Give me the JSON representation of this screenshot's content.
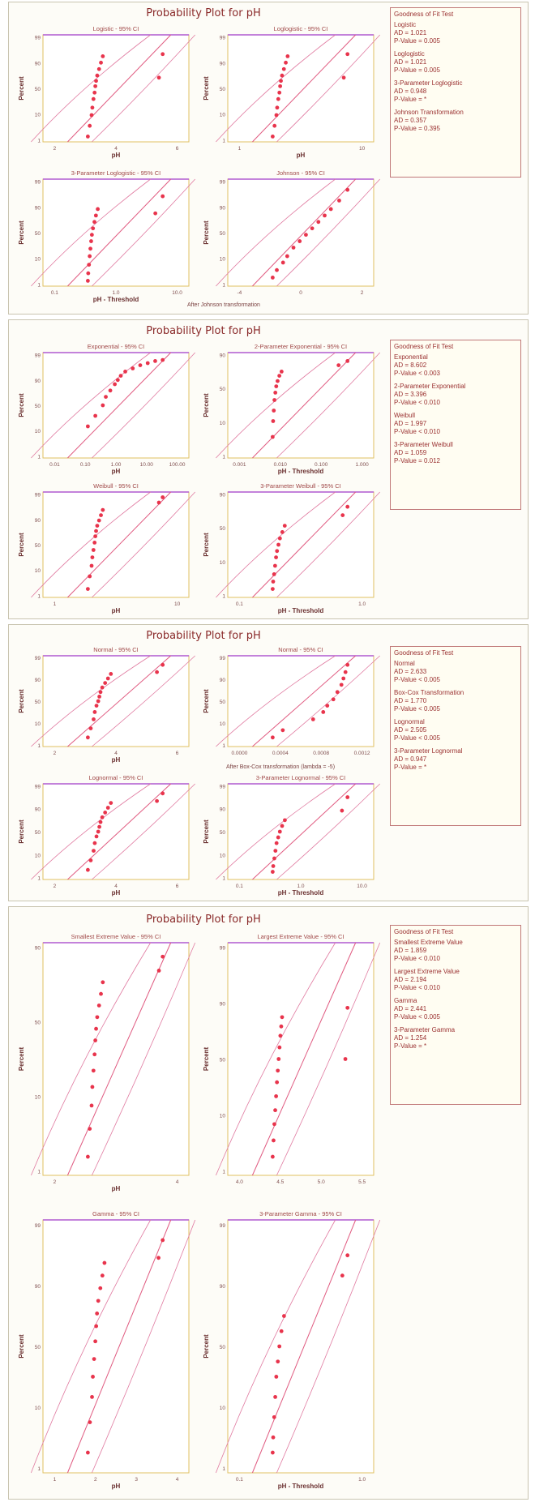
{
  "panels": [
    {
      "title": "Probability Plot for pH",
      "note": "After Johnson transformation",
      "gof_header": "Goodness of Fit Test",
      "gof": [
        {
          "name": "Logistic",
          "ad": "AD = 1.021",
          "p": "P-Value = 0.005"
        },
        {
          "name": "Loglogistic",
          "ad": "AD = 1.021",
          "p": "P-Value = 0.005"
        },
        {
          "name": "3-Parameter Loglogistic",
          "ad": "AD = 0.948",
          "p": "P-Value = *"
        },
        {
          "name": "Johnson Transformation",
          "ad": "AD = 0.357",
          "p": "P-Value = 0.395"
        }
      ]
    },
    {
      "title": "Probability Plot for pH",
      "note": "",
      "gof_header": "Goodness of Fit Test",
      "gof": [
        {
          "name": "Exponential",
          "ad": "AD = 8.602",
          "p": "P-Value < 0.003"
        },
        {
          "name": "2-Parameter Exponential",
          "ad": "AD = 3.396",
          "p": "P-Value < 0.010"
        },
        {
          "name": "Weibull",
          "ad": "AD = 1.997",
          "p": "P-Value < 0.010"
        },
        {
          "name": "3-Parameter Weibull",
          "ad": "AD = 1.059",
          "p": "P-Value = 0.012"
        }
      ]
    },
    {
      "title": "Probability Plot for pH",
      "note": "After Box-Cox transformation (lambda = -5)",
      "gof_header": "Goodness of Fit Test",
      "gof": [
        {
          "name": "Normal",
          "ad": "AD = 2.633",
          "p": "P-Value < 0.005"
        },
        {
          "name": "Box-Cox Transformation",
          "ad": "AD = 1.770",
          "p": "P-Value < 0.005"
        },
        {
          "name": "Lognormal",
          "ad": "AD = 2.505",
          "p": "P-Value < 0.005"
        },
        {
          "name": "3-Parameter Lognormal",
          "ad": "AD = 0.947",
          "p": "P-Value = *"
        }
      ]
    },
    {
      "title": "Probability Plot for pH",
      "note": "",
      "gof_header": "Goodness of Fit Test",
      "gof": [
        {
          "name": "Smallest Extreme Value",
          "ad": "AD = 1.859",
          "p": "P-Value < 0.010"
        },
        {
          "name": "Largest Extreme Value",
          "ad": "AD = 2.194",
          "p": "P-Value < 0.010"
        },
        {
          "name": "Gamma",
          "ad": "AD = 2.441",
          "p": "P-Value < 0.005"
        },
        {
          "name": "3-Parameter Gamma",
          "ad": "AD = 1.254",
          "p": "P-Value = *"
        }
      ]
    }
  ],
  "chart_data": [
    {
      "type": "scatter",
      "title": "Logistic - 95% CI",
      "xlabel": "pH",
      "ylabel": "Percent",
      "xticks": [
        "2",
        "4",
        "6"
      ],
      "yticks": [
        "1",
        "10",
        "50",
        "90",
        "99"
      ],
      "series": [
        {
          "name": "",
          "x": [
            4.1,
            4.15,
            4.2,
            4.22,
            4.25,
            4.28,
            4.3,
            4.32,
            4.35,
            4.4,
            4.45,
            4.5,
            6.0,
            6.1
          ],
          "y": [
            5,
            15,
            25,
            32,
            40,
            46,
            52,
            57,
            62,
            68,
            74,
            80,
            60,
            82
          ]
        }
      ]
    },
    {
      "type": "scatter",
      "title": "Loglogistic - 95% CI",
      "xlabel": "pH",
      "ylabel": "Percent",
      "xticks": [
        "1",
        "10"
      ],
      "yticks": [
        "1",
        "10",
        "50",
        "90",
        "99"
      ],
      "series": [
        {
          "name": "",
          "x": [
            4.1,
            4.15,
            4.2,
            4.22,
            4.25,
            4.28,
            4.3,
            4.32,
            4.35,
            4.4,
            4.45,
            4.5,
            6.0,
            6.1
          ],
          "y": [
            5,
            15,
            25,
            32,
            40,
            46,
            52,
            57,
            62,
            68,
            74,
            80,
            60,
            82
          ]
        }
      ]
    },
    {
      "type": "scatter",
      "title": "3-Parameter Loglogistic - 95% CI",
      "xlabel": "pH - Threshold",
      "ylabel": "Percent",
      "xticks": [
        "0.1",
        "1.0",
        "10.0"
      ],
      "yticks": [
        "1",
        "10",
        "50",
        "90",
        "99"
      ],
      "series": [
        {
          "name": "",
          "x": [
            0.06,
            0.07,
            0.09,
            0.11,
            0.13,
            0.15,
            0.17,
            0.2,
            0.24,
            0.28,
            0.33,
            1.9,
            2.1
          ],
          "y": [
            5,
            12,
            20,
            28,
            35,
            42,
            48,
            54,
            60,
            66,
            72,
            68,
            84
          ]
        }
      ]
    },
    {
      "type": "scatter",
      "title": "Johnson - 95% CI",
      "xlabel": "",
      "ylabel": "Percent",
      "xticks": [
        "-4",
        "0",
        "2"
      ],
      "yticks": [
        "1",
        "10",
        "50",
        "90",
        "99"
      ],
      "series": [
        {
          "name": "",
          "x": [
            -1.9,
            -1.7,
            -1.4,
            -1.2,
            -0.9,
            -0.6,
            -0.3,
            0,
            0.3,
            0.6,
            0.9,
            1.3,
            1.7
          ],
          "y": [
            8,
            15,
            22,
            28,
            36,
            42,
            48,
            54,
            60,
            66,
            72,
            80,
            90
          ]
        }
      ]
    },
    {
      "type": "scatter",
      "title": "Exponential - 95% CI",
      "xlabel": "pH",
      "ylabel": "Percent",
      "xticks": [
        "0.01",
        "0.10",
        "1.00",
        "10.00",
        "100.00"
      ],
      "yticks": [
        "1",
        "10",
        "50",
        "90",
        "99"
      ],
      "series": [
        {
          "name": "",
          "x": [
            4.1,
            4.15,
            4.2,
            4.22,
            4.25,
            4.28,
            4.3,
            4.32,
            4.35,
            4.4,
            4.45,
            4.5,
            4.55,
            4.6
          ],
          "y": [
            30,
            40,
            50,
            58,
            64,
            70,
            74,
            78,
            82,
            85,
            88,
            90,
            92,
            93
          ]
        }
      ]
    },
    {
      "type": "scatter",
      "title": "2-Parameter Exponential - 95% CI",
      "xlabel": "pH - Threshold",
      "ylabel": "Percent",
      "xticks": [
        "0.001",
        "0.010",
        "0.100",
        "1.000"
      ],
      "yticks": [
        "1",
        "10",
        "50",
        "90"
      ],
      "series": [
        {
          "name": "",
          "x": [
            0.02,
            0.03,
            0.045,
            0.06,
            0.08,
            0.1,
            0.13,
            0.17,
            0.22,
            1.5,
            1.7
          ],
          "y": [
            20,
            35,
            45,
            55,
            62,
            68,
            73,
            78,
            82,
            88,
            92
          ]
        }
      ]
    },
    {
      "type": "scatter",
      "title": "Weibull - 95% CI",
      "xlabel": "pH",
      "ylabel": "Percent",
      "xticks": [
        "1",
        "10"
      ],
      "yticks": [
        "1",
        "10",
        "50",
        "90",
        "99"
      ],
      "series": [
        {
          "name": "",
          "x": [
            4.1,
            4.15,
            4.2,
            4.22,
            4.25,
            4.28,
            4.3,
            4.32,
            4.35,
            4.4,
            4.45,
            4.5,
            6.0,
            6.1
          ],
          "y": [
            8,
            20,
            30,
            38,
            45,
            52,
            58,
            63,
            68,
            73,
            78,
            83,
            90,
            95
          ]
        }
      ]
    },
    {
      "type": "scatter",
      "title": "3-Parameter Weibull - 95% CI",
      "xlabel": "pH - Threshold",
      "ylabel": "Percent",
      "xticks": [
        "0.1",
        "1.0"
      ],
      "yticks": [
        "1",
        "10",
        "50",
        "90"
      ],
      "series": [
        {
          "name": "",
          "x": [
            0.05,
            0.06,
            0.08,
            0.1,
            0.12,
            0.14,
            0.17,
            0.2,
            0.25,
            0.3,
            1.5,
            1.6
          ],
          "y": [
            8,
            15,
            22,
            30,
            38,
            44,
            50,
            56,
            62,
            68,
            78,
            86
          ]
        }
      ]
    },
    {
      "type": "scatter",
      "title": "Normal - 95% CI",
      "xlabel": "pH",
      "ylabel": "Percent",
      "xticks": [
        "2",
        "4",
        "6"
      ],
      "yticks": [
        "1",
        "10",
        "50",
        "90",
        "99"
      ],
      "series": [
        {
          "name": "",
          "x": [
            4.1,
            4.15,
            4.2,
            4.22,
            4.25,
            4.28,
            4.3,
            4.32,
            4.35,
            4.4,
            4.45,
            4.5,
            5.3,
            5.4
          ],
          "y": [
            10,
            20,
            30,
            38,
            45,
            50,
            55,
            60,
            65,
            70,
            75,
            80,
            82,
            90
          ]
        }
      ]
    },
    {
      "type": "scatter",
      "title": "Normal - 95% CI",
      "xlabel": "",
      "ylabel": "Percent",
      "xticks": [
        "0.0000",
        "0.0004",
        "0.0008",
        "0.0012"
      ],
      "yticks": [
        "1",
        "10",
        "50",
        "90",
        "99"
      ],
      "series": [
        {
          "name": "",
          "x": [
            0.00045,
            0.0005,
            0.00065,
            0.0007,
            0.00072,
            0.00075,
            0.00077,
            0.00079,
            0.0008,
            0.00081,
            0.00082
          ],
          "y": [
            10,
            18,
            30,
            38,
            45,
            52,
            60,
            68,
            75,
            82,
            90
          ]
        }
      ]
    },
    {
      "type": "scatter",
      "title": "Lognormal - 95% CI",
      "xlabel": "pH",
      "ylabel": "Percent",
      "xticks": [
        "2",
        "4",
        "6"
      ],
      "yticks": [
        "1",
        "10",
        "50",
        "90",
        "99"
      ],
      "series": [
        {
          "name": "",
          "x": [
            4.1,
            4.15,
            4.2,
            4.22,
            4.25,
            4.28,
            4.3,
            4.32,
            4.35,
            4.4,
            4.45,
            4.5,
            5.3,
            5.4
          ],
          "y": [
            10,
            20,
            30,
            38,
            45,
            50,
            55,
            60,
            65,
            70,
            75,
            80,
            82,
            90
          ]
        }
      ]
    },
    {
      "type": "scatter",
      "title": "3-Parameter Lognormal - 95% CI",
      "xlabel": "pH - Threshold",
      "ylabel": "Percent",
      "xticks": [
        "0.1",
        "1.0",
        "10.0"
      ],
      "yticks": [
        "1",
        "10",
        "50",
        "90",
        "99"
      ],
      "series": [
        {
          "name": "",
          "x": [
            0.05,
            0.06,
            0.08,
            0.1,
            0.12,
            0.15,
            0.18,
            0.22,
            0.27,
            1.3,
            1.4
          ],
          "y": [
            8,
            14,
            22,
            30,
            38,
            44,
            50,
            56,
            62,
            72,
            86
          ]
        }
      ]
    },
    {
      "type": "scatter",
      "title": "Smallest Extreme Value - 95% CI",
      "xlabel": "pH",
      "ylabel": "Percent",
      "xticks": [
        "2",
        "4"
      ],
      "yticks": [
        "1",
        "10",
        "50",
        "90"
      ],
      "series": [
        {
          "name": "",
          "x": [
            4.1,
            4.15,
            4.2,
            4.22,
            4.25,
            4.28,
            4.3,
            4.32,
            4.35,
            4.4,
            4.45,
            4.5,
            6.0,
            6.1
          ],
          "y": [
            8,
            20,
            30,
            38,
            45,
            52,
            58,
            63,
            68,
            73,
            78,
            83,
            88,
            94
          ]
        }
      ]
    },
    {
      "type": "scatter",
      "title": "Largest Extreme Value - 95% CI",
      "xlabel": "",
      "ylabel": "Percent",
      "xticks": [
        "4.0",
        "4.5",
        "5.0",
        "5.5"
      ],
      "yticks": [
        "1",
        "10",
        "50",
        "90",
        "99"
      ],
      "series": [
        {
          "name": "",
          "x": [
            4.2,
            4.22,
            4.24,
            4.26,
            4.28,
            4.3,
            4.32,
            4.34,
            4.36,
            4.38,
            4.4,
            4.42,
            5.9,
            5.95
          ],
          "y": [
            8,
            15,
            22,
            28,
            34,
            40,
            45,
            50,
            55,
            60,
            64,
            68,
            50,
            72
          ]
        }
      ]
    },
    {
      "type": "scatter",
      "title": "Gamma - 95% CI",
      "xlabel": "pH",
      "ylabel": "Percent",
      "xticks": [
        "1",
        "2",
        "3",
        "4"
      ],
      "yticks": [
        "1",
        "10",
        "50",
        "90",
        "99"
      ],
      "series": [
        {
          "name": "",
          "x": [
            4.1,
            4.15,
            4.2,
            4.22,
            4.25,
            4.28,
            4.3,
            4.32,
            4.35,
            4.4,
            4.45,
            4.5,
            5.8,
            5.9
          ],
          "y": [
            8,
            20,
            30,
            38,
            45,
            52,
            58,
            63,
            68,
            73,
            78,
            83,
            85,
            92
          ]
        }
      ]
    },
    {
      "type": "scatter",
      "title": "3-Parameter Gamma - 95% CI",
      "xlabel": "pH - Threshold",
      "ylabel": "Percent",
      "xticks": [
        "0.1",
        "1.0"
      ],
      "yticks": [
        "1",
        "10",
        "50",
        "90",
        "99"
      ],
      "series": [
        {
          "name": "",
          "x": [
            0.05,
            0.06,
            0.08,
            0.1,
            0.12,
            0.15,
            0.18,
            0.22,
            0.27,
            1.4,
            1.5
          ],
          "y": [
            8,
            14,
            22,
            30,
            38,
            44,
            50,
            56,
            62,
            78,
            86
          ]
        }
      ]
    }
  ]
}
